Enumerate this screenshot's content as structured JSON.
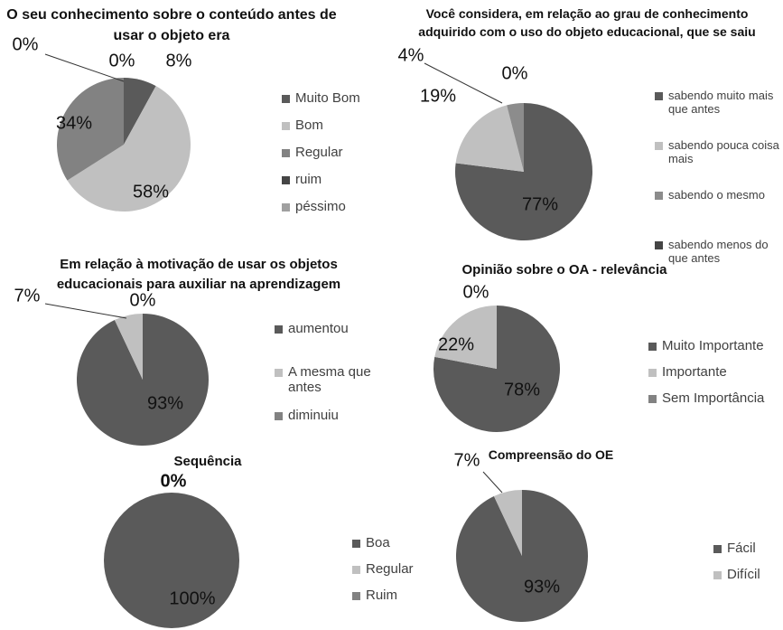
{
  "chart_data": [
    {
      "type": "pie",
      "title": "O seu conhecimento sobre o conteúdo antes de usar o objeto era",
      "categories": [
        "Muito Bom",
        "Bom",
        "Regular",
        "ruim",
        "péssimo"
      ],
      "values": [
        8,
        58,
        34,
        0,
        0
      ],
      "value_labels": [
        "8%",
        "58%",
        "34%",
        "0%",
        "0%"
      ],
      "colors": [
        "#5a5a5a",
        "#c0c0c0",
        "#828282",
        "#454545",
        "#a0a0a0"
      ],
      "legend": "right"
    },
    {
      "type": "pie",
      "title": "Você considera, em relação ao grau de conhecimento adquirido com o uso do objeto educacional, que se saiu",
      "categories": [
        "sabendo muito mais que antes",
        "sabendo pouca coisa mais",
        "sabendo o mesmo",
        "sabendo menos do que antes"
      ],
      "values": [
        77,
        19,
        4,
        0
      ],
      "value_labels": [
        "77%",
        "19%",
        "4%",
        "0%"
      ],
      "colors": [
        "#5a5a5a",
        "#c0c0c0",
        "#8c8c8c",
        "#454545"
      ],
      "legend": "right"
    },
    {
      "type": "pie",
      "title": "Em relação à motivação de usar os objetos educacionais para auxiliar na aprendizagem",
      "categories": [
        "aumentou",
        "A mesma que antes",
        "diminuiu"
      ],
      "values": [
        93,
        7,
        0
      ],
      "value_labels": [
        "93%",
        "7%",
        "0%"
      ],
      "colors": [
        "#5a5a5a",
        "#c0c0c0",
        "#828282"
      ],
      "legend": "right"
    },
    {
      "type": "pie",
      "title": "Opinião sobre o OA - relevância",
      "categories": [
        "Muito Importante",
        "Importante",
        "Sem Importância"
      ],
      "values": [
        78,
        22,
        0
      ],
      "value_labels": [
        "78%",
        "22%",
        "0%"
      ],
      "colors": [
        "#5a5a5a",
        "#c0c0c0",
        "#828282"
      ],
      "legend": "right"
    },
    {
      "type": "pie",
      "title": "Sequência",
      "categories": [
        "Boa",
        "Regular",
        "Ruim"
      ],
      "values": [
        100,
        0,
        0
      ],
      "value_labels": [
        "100%",
        "0%",
        null
      ],
      "colors": [
        "#5a5a5a",
        "#c0c0c0",
        "#828282"
      ],
      "legend": "right"
    },
    {
      "type": "pie",
      "title": "Compreensão do OE",
      "categories": [
        "Fácil",
        "Difícil"
      ],
      "values": [
        93,
        7
      ],
      "value_labels": [
        "93%",
        "7%"
      ],
      "colors": [
        "#5a5a5a",
        "#c0c0c0"
      ],
      "legend": "right"
    }
  ]
}
